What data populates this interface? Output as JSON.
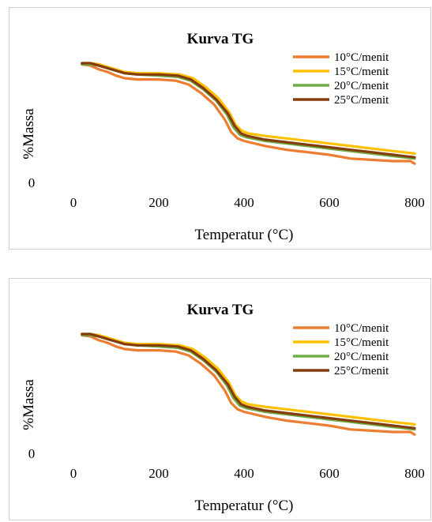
{
  "chart_data": [
    {
      "type": "line",
      "title": "Kurva TG",
      "xlabel": "Temperatur (°C)",
      "ylabel": "%Massa",
      "xlim": [
        0,
        800
      ],
      "ylim": [
        0,
        100
      ],
      "x_ticks": [
        "0",
        "200",
        "400",
        "600",
        "800"
      ],
      "y_ticks": [
        "0"
      ],
      "grid": false,
      "legend_position": "top-right",
      "series": [
        {
          "name": "10°C/menit",
          "color": "#ED7D31",
          "x": [
            20,
            40,
            60,
            80,
            100,
            120,
            150,
            200,
            240,
            270,
            300,
            330,
            355,
            370,
            385,
            400,
            450,
            500,
            550,
            600,
            650,
            700,
            750,
            790,
            800
          ],
          "y": [
            94,
            93,
            90,
            88,
            85,
            83,
            82,
            82,
            81,
            78,
            71,
            62,
            50,
            40,
            35,
            33,
            29,
            26,
            24,
            22,
            19,
            18,
            17,
            17,
            15
          ]
        },
        {
          "name": "15°C/menit",
          "color": "#FFC000",
          "x": [
            20,
            40,
            60,
            80,
            100,
            120,
            150,
            200,
            250,
            280,
            310,
            340,
            365,
            380,
            395,
            410,
            450,
            500,
            550,
            600,
            650,
            700,
            750,
            800
          ],
          "y": [
            95,
            95,
            94,
            92,
            90,
            88,
            87,
            87,
            86,
            83,
            76,
            67,
            56,
            46,
            41,
            39,
            37,
            35,
            33,
            31,
            29,
            27,
            25,
            23
          ]
        },
        {
          "name": "20°C/menit",
          "color": "#70AD47",
          "x": [
            20,
            40,
            60,
            80,
            100,
            120,
            150,
            200,
            245,
            275,
            305,
            335,
            360,
            375,
            390,
            405,
            450,
            500,
            550,
            600,
            650,
            700,
            750,
            800
          ],
          "y": [
            94,
            94,
            93,
            91,
            89,
            87,
            86,
            85,
            84,
            81,
            74,
            65,
            54,
            44,
            38,
            36,
            33,
            31,
            29,
            27,
            25,
            23,
            21,
            19
          ]
        },
        {
          "name": "25°C/menit",
          "color": "#843C0C",
          "x": [
            20,
            40,
            60,
            80,
            100,
            120,
            150,
            200,
            245,
            275,
            305,
            335,
            362,
            378,
            393,
            408,
            450,
            500,
            550,
            600,
            650,
            700,
            750,
            800
          ],
          "y": [
            95,
            95,
            93,
            91,
            89,
            87,
            86,
            86,
            85,
            82,
            75,
            66,
            55,
            45,
            39,
            37,
            34,
            32,
            30,
            28,
            26,
            24,
            22,
            20
          ]
        }
      ]
    },
    {
      "type": "line",
      "title": "Kurva TG",
      "xlabel": "Temperatur (°C)",
      "ylabel": "%Massa",
      "xlim": [
        0,
        800
      ],
      "ylim": [
        0,
        100
      ],
      "x_ticks": [
        "0",
        "200",
        "400",
        "600",
        "800"
      ],
      "y_ticks": [
        "0"
      ],
      "grid": false,
      "legend_position": "top-right",
      "series": [
        {
          "name": "10°C/menit",
          "color": "#ED7D31",
          "x": [
            20,
            40,
            60,
            80,
            100,
            120,
            150,
            200,
            240,
            270,
            300,
            330,
            355,
            370,
            385,
            400,
            450,
            500,
            550,
            600,
            650,
            700,
            750,
            790,
            800
          ],
          "y": [
            94,
            93,
            90,
            88,
            85,
            83,
            82,
            82,
            81,
            78,
            71,
            62,
            50,
            40,
            35,
            33,
            29,
            26,
            24,
            22,
            19,
            18,
            17,
            17,
            15
          ]
        },
        {
          "name": "15°C/menit",
          "color": "#FFC000",
          "x": [
            20,
            40,
            60,
            80,
            100,
            120,
            150,
            200,
            250,
            280,
            310,
            340,
            365,
            380,
            395,
            410,
            450,
            500,
            550,
            600,
            650,
            700,
            750,
            800
          ],
          "y": [
            95,
            95,
            94,
            92,
            90,
            88,
            87,
            87,
            86,
            83,
            76,
            67,
            56,
            46,
            41,
            39,
            37,
            35,
            33,
            31,
            29,
            27,
            25,
            23
          ]
        },
        {
          "name": "20°C/menit",
          "color": "#70AD47",
          "x": [
            20,
            40,
            60,
            80,
            100,
            120,
            150,
            200,
            245,
            275,
            305,
            335,
            360,
            375,
            390,
            405,
            450,
            500,
            550,
            600,
            650,
            700,
            750,
            800
          ],
          "y": [
            94,
            94,
            93,
            91,
            89,
            87,
            86,
            85,
            84,
            81,
            74,
            65,
            54,
            44,
            38,
            36,
            33,
            31,
            29,
            27,
            25,
            23,
            21,
            19
          ]
        },
        {
          "name": "25°C/menit",
          "color": "#843C0C",
          "x": [
            20,
            40,
            60,
            80,
            100,
            120,
            150,
            200,
            245,
            275,
            305,
            335,
            362,
            378,
            393,
            408,
            450,
            500,
            550,
            600,
            650,
            700,
            750,
            800
          ],
          "y": [
            95,
            95,
            93,
            91,
            89,
            87,
            86,
            86,
            85,
            82,
            75,
            66,
            55,
            45,
            39,
            37,
            34,
            32,
            30,
            28,
            26,
            24,
            22,
            20
          ]
        }
      ]
    }
  ]
}
